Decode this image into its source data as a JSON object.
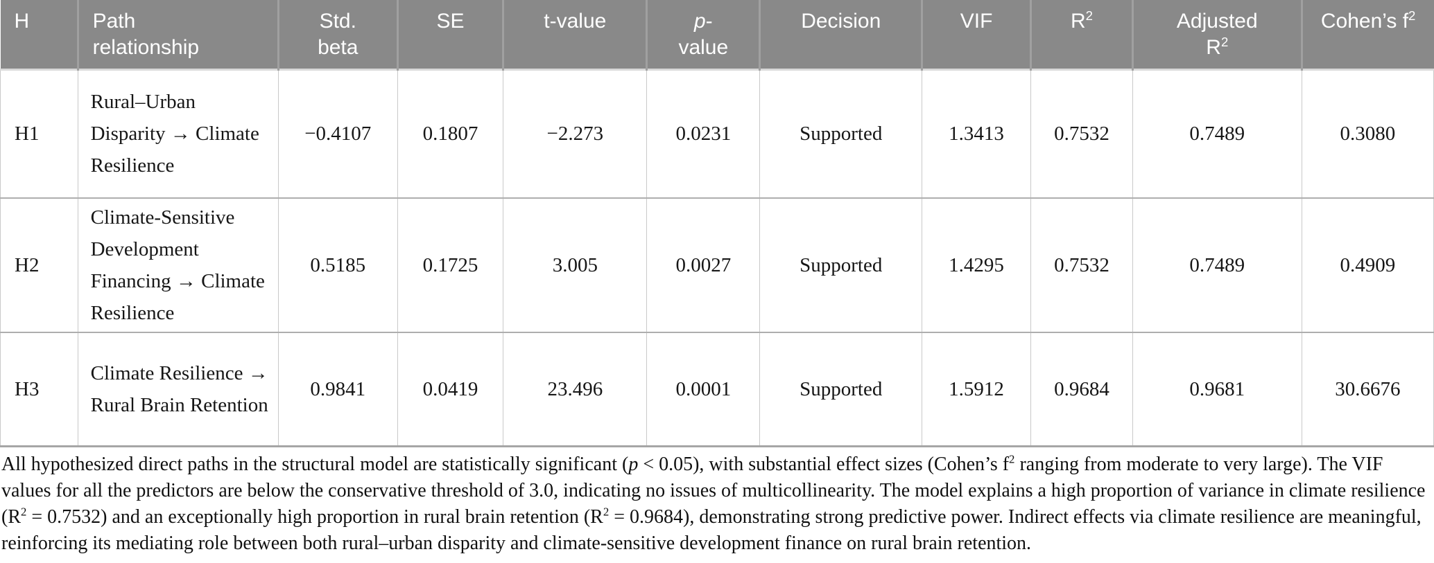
{
  "table": {
    "columns": [
      {
        "key": "h",
        "label": [
          {
            "t": "H"
          }
        ]
      },
      {
        "key": "path",
        "label": [
          {
            "t": "Path"
          },
          {
            "br": true
          },
          {
            "t": "relationship"
          }
        ]
      },
      {
        "key": "std_beta",
        "label": [
          {
            "t": "Std."
          },
          {
            "br": true
          },
          {
            "t": "beta"
          }
        ]
      },
      {
        "key": "se",
        "label": [
          {
            "t": "SE"
          }
        ]
      },
      {
        "key": "t_value",
        "label": [
          {
            "t": "t-value"
          }
        ]
      },
      {
        "key": "p_value",
        "label": [
          {
            "t": "p",
            "i": true
          },
          {
            "t": "-"
          },
          {
            "br": true
          },
          {
            "t": "value"
          }
        ]
      },
      {
        "key": "decision",
        "label": [
          {
            "t": "Decision"
          }
        ]
      },
      {
        "key": "vif",
        "label": [
          {
            "t": "VIF"
          }
        ]
      },
      {
        "key": "r2",
        "label": [
          {
            "t": "R"
          },
          {
            "t": "2",
            "sup": true
          }
        ]
      },
      {
        "key": "adj_r2",
        "label": [
          {
            "t": "Adjusted"
          },
          {
            "br": true
          },
          {
            "t": "R"
          },
          {
            "t": "2",
            "sup": true
          }
        ]
      },
      {
        "key": "cohens_f2",
        "label": [
          {
            "t": "Cohen’s f"
          },
          {
            "t": "2",
            "sup": true
          }
        ]
      }
    ],
    "rows": [
      {
        "h": "H1",
        "path": "Rural–Urban Disparity → Climate Resilience",
        "std_beta": "−0.4107",
        "se": "0.1807",
        "t_value": "−2.273",
        "p_value": "0.0231",
        "decision": "Supported",
        "vif": "1.3413",
        "r2": "0.7532",
        "adj_r2": "0.7489",
        "cohens_f2": "0.3080"
      },
      {
        "h": "H2",
        "path": "Climate-Sensitive Development Financing → Climate Resilience",
        "std_beta": "0.5185",
        "se": "0.1725",
        "t_value": "3.005",
        "p_value": "0.0027",
        "decision": "Supported",
        "vif": "1.4295",
        "r2": "0.7532",
        "adj_r2": "0.7489",
        "cohens_f2": "0.4909"
      },
      {
        "h": "H3",
        "path": "Climate Resilience → Rural Brain Retention",
        "std_beta": "0.9841",
        "se": "0.0419",
        "t_value": "23.496",
        "p_value": "0.0001",
        "decision": "Supported",
        "vif": "1.5912",
        "r2": "0.9684",
        "adj_r2": "0.9681",
        "cohens_f2": "30.6676"
      }
    ]
  },
  "footnote": {
    "segments": [
      {
        "t": "All hypothesized direct paths in the structural model are statistically significant ("
      },
      {
        "t": "p",
        "i": true
      },
      {
        "t": " < 0.05), with substantial effect sizes (Cohen’s f"
      },
      {
        "t": "2",
        "sup": true
      },
      {
        "t": " ranging from moderate to very large). The VIF values for all the predictors are below the conservative threshold of 3.0, indicating no issues of multicollinearity. The model explains a high proportion of variance in climate resilience (R"
      },
      {
        "t": "2",
        "sup": true
      },
      {
        "t": " = 0.7532) and an exceptionally high proportion in rural brain retention (R"
      },
      {
        "t": "2",
        "sup": true
      },
      {
        "t": " = 0.9684), demonstrating strong predictive power. Indirect effects via climate resilience are meaningful, reinforcing its mediating role between both rural–urban disparity and climate-sensitive development finance on rural brain retention."
      }
    ]
  },
  "colors": {
    "header_background": "#898989",
    "header_text": "#ffffff",
    "body_text": "#161616",
    "grid_line": "#c9c9c9",
    "row_separator": "#aeaeae"
  }
}
